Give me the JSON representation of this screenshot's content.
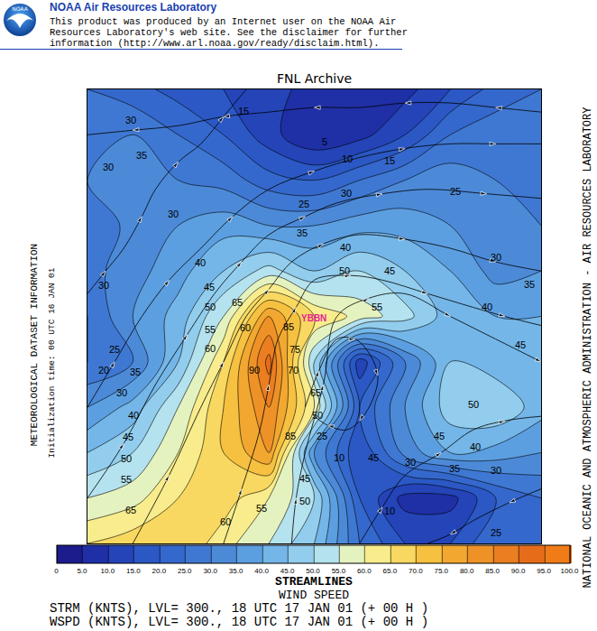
{
  "chart_data": {
    "type": "contour",
    "title": "FNL Archive",
    "header": {
      "logo_text": "NOAA",
      "heading": "NOAA Air Resources Laboratory",
      "lines": [
        "This product was produced by an Internet user on the NOAA Air",
        "Resources Laboratory's web site.  See the disclaimer for further",
        "information (http://www.arl.noaa.gov/ready/disclaim.html)."
      ]
    },
    "left_texts": [
      "METEOROLOGICAL DATASET INFORMATION",
      "Initialization time: 00 UTC 16 JAN 01"
    ],
    "right_text": "NATIONAL OCEANIC AND ATMOSPHERIC ADMINISTRATION - AIR RESOURCES LABORATORY",
    "footer": {
      "titles": [
        "STREAMLINES",
        "WIND SPEED"
      ],
      "lines": [
        "STRM (KNTS),  LVL= 300., 18 UTC 17 JAN 01 (+ 00 H )",
        "WSPD (KNTS),  LVL= 300., 18 UTC 17 JAN 01 (+ 00 H )"
      ]
    },
    "xlim": [
      0,
      100
    ],
    "ylim": [
      0,
      100
    ],
    "tick_labels": false,
    "grid": false,
    "x": [
      0,
      10,
      20,
      30,
      40,
      50,
      60,
      70,
      80,
      90,
      100
    ],
    "y": [
      0,
      10,
      20,
      30,
      40,
      50,
      60,
      70,
      80,
      90,
      100
    ],
    "z": [
      [
        65,
        68,
        70,
        62,
        55,
        45,
        25,
        15,
        15,
        25,
        25
      ],
      [
        55,
        58,
        65,
        68,
        60,
        50,
        20,
        8,
        8,
        20,
        25
      ],
      [
        45,
        50,
        60,
        70,
        80,
        35,
        15,
        32,
        40,
        38,
        35
      ],
      [
        35,
        42,
        55,
        70,
        85,
        60,
        20,
        35,
        48,
        50,
        42
      ],
      [
        25,
        30,
        45,
        65,
        92,
        50,
        12,
        30,
        45,
        42,
        45
      ],
      [
        25,
        35,
        42,
        55,
        80,
        65,
        58,
        52,
        42,
        40,
        40
      ],
      [
        28,
        33,
        38,
        45,
        52,
        45,
        50,
        45,
        40,
        33,
        35
      ],
      [
        25,
        32,
        35,
        38,
        35,
        35,
        38,
        38,
        35,
        32,
        30
      ],
      [
        30,
        33,
        30,
        28,
        22,
        20,
        25,
        30,
        33,
        30,
        30
      ],
      [
        30,
        30,
        25,
        20,
        12,
        5,
        8,
        15,
        25,
        28,
        28
      ],
      [
        25,
        22,
        18,
        15,
        12,
        8,
        5,
        8,
        15,
        22,
        25
      ]
    ],
    "colorbar": {
      "range": [
        0,
        100
      ],
      "ticks": [
        0,
        {
          "value": 5,
          "label": "5.0"
        },
        {
          "value": 10,
          "label": "10.0"
        },
        {
          "value": 15,
          "label": "15.0"
        },
        {
          "value": 20,
          "label": "20.0"
        },
        {
          "value": 25,
          "label": "25.0"
        },
        {
          "value": 30,
          "label": "30.0"
        },
        {
          "value": 35,
          "label": "35.0"
        },
        {
          "value": 40,
          "label": "40.0"
        },
        {
          "value": 45,
          "label": "45.0"
        },
        {
          "value": 50,
          "label": "50.0"
        },
        {
          "value": 55,
          "label": "55.0"
        },
        {
          "value": 60,
          "label": "60.0"
        },
        {
          "value": 65,
          "label": "65.0"
        },
        {
          "value": 70,
          "label": "70.0"
        },
        {
          "value": 75,
          "label": "75.0"
        },
        {
          "value": 80,
          "label": "80.0"
        },
        {
          "value": 85,
          "label": "85.0"
        },
        {
          "value": 90,
          "label": "90.0"
        },
        {
          "value": 95,
          "label": "95.0"
        },
        {
          "value": 100,
          "label": "100.0"
        }
      ],
      "colors": [
        "#1c1c8c",
        "#1f2fa6",
        "#2444b8",
        "#2b58c4",
        "#3568cc",
        "#3f78d2",
        "#4c8ad8",
        "#5c9fe0",
        "#74b6e8",
        "#92cded",
        "#b4e2ee",
        "#e4f2c0",
        "#f8ec8c",
        "#f8d860",
        "#f6c040",
        "#f2a830",
        "#ee9228",
        "#ea7e20",
        "#e66c1a",
        "#f07c18"
      ]
    },
    "contour_labels": [
      [
        34.4,
        95.2,
        15
      ],
      [
        9.5,
        93.2,
        30
      ],
      [
        52.3,
        88.5,
        5
      ],
      [
        11.9,
        85.5,
        35
      ],
      [
        57.3,
        84.7,
        10
      ],
      [
        66.6,
        84.3,
        15
      ],
      [
        4.6,
        82.9,
        30
      ],
      [
        18.9,
        72.6,
        30
      ],
      [
        47.7,
        74.8,
        25
      ],
      [
        57.1,
        77.1,
        30
      ],
      [
        81.1,
        77.5,
        25
      ],
      [
        47.3,
        68.4,
        35
      ],
      [
        56.9,
        65.2,
        40
      ],
      [
        24.9,
        61.8,
        40
      ],
      [
        56.7,
        60.0,
        50
      ],
      [
        66.6,
        60.0,
        45
      ],
      [
        90.1,
        63.0,
        30
      ],
      [
        26.8,
        56.5,
        45
      ],
      [
        3.6,
        56.9,
        30
      ],
      [
        97.5,
        57.1,
        35
      ],
      [
        27.0,
        52.1,
        50
      ],
      [
        33.0,
        53.1,
        65
      ],
      [
        63.8,
        52.1,
        55
      ],
      [
        88.1,
        52.1,
        40
      ],
      [
        27.0,
        47.1,
        55
      ],
      [
        34.8,
        47.5,
        60
      ],
      [
        44.3,
        47.7,
        85
      ],
      [
        27.0,
        42.9,
        60
      ],
      [
        45.7,
        42.7,
        75
      ],
      [
        6.0,
        42.7,
        25
      ],
      [
        95.4,
        43.7,
        45
      ],
      [
        36.8,
        38.2,
        90
      ],
      [
        45.3,
        38.2,
        70
      ],
      [
        3.6,
        38.2,
        20
      ],
      [
        10.5,
        37.8,
        35
      ],
      [
        50.3,
        33.2,
        65
      ],
      [
        7.6,
        33.2,
        30
      ],
      [
        85.1,
        30.6,
        50
      ],
      [
        10.1,
        28.2,
        40
      ],
      [
        50.7,
        28.2,
        50
      ],
      [
        44.7,
        23.7,
        85
      ],
      [
        51.7,
        23.7,
        25
      ],
      [
        8.9,
        23.5,
        45
      ],
      [
        77.5,
        23.7,
        45
      ],
      [
        85.5,
        21.3,
        40
      ],
      [
        55.5,
        18.9,
        10
      ],
      [
        47.9,
        14.3,
        45
      ],
      [
        47.9,
        9.3,
        50
      ],
      [
        63.0,
        18.9,
        45
      ],
      [
        71.2,
        17.9,
        30
      ],
      [
        80.9,
        16.5,
        35
      ],
      [
        90.1,
        16.1,
        30
      ],
      [
        8.5,
        18.7,
        50
      ],
      [
        8.5,
        14.1,
        55
      ],
      [
        9.5,
        7.4,
        65
      ],
      [
        66.6,
        7.2,
        10
      ],
      [
        38.4,
        7.8,
        55
      ],
      [
        30.4,
        4.8,
        60
      ],
      [
        90.1,
        2.4,
        25
      ]
    ],
    "streamlines": [
      [
        [
          10,
          0
        ],
        [
          18,
          15
        ],
        [
          25,
          30
        ],
        [
          30,
          40
        ],
        [
          35,
          50
        ],
        [
          40,
          56
        ],
        [
          45,
          62
        ],
        [
          52,
          66
        ],
        [
          60,
          68
        ],
        [
          70,
          67
        ],
        [
          80,
          65
        ],
        [
          90,
          62
        ],
        [
          100,
          60
        ]
      ],
      [
        [
          0,
          10
        ],
        [
          8,
          22
        ],
        [
          15,
          35
        ],
        [
          22,
          46
        ],
        [
          28,
          55
        ],
        [
          34,
          62
        ],
        [
          40,
          68
        ],
        [
          48,
          72
        ],
        [
          55,
          75
        ],
        [
          65,
          77
        ],
        [
          75,
          78
        ],
        [
          88,
          77
        ],
        [
          100,
          76
        ]
      ],
      [
        [
          30,
          0
        ],
        [
          34,
          12
        ],
        [
          38,
          25
        ],
        [
          40,
          35
        ],
        [
          42,
          45
        ],
        [
          46,
          52
        ],
        [
          50,
          58
        ],
        [
          58,
          59
        ],
        [
          65,
          58
        ],
        [
          75,
          55
        ],
        [
          85,
          52
        ],
        [
          92,
          50
        ],
        [
          100,
          48
        ]
      ],
      [
        [
          0,
          30
        ],
        [
          6,
          40
        ],
        [
          12,
          50
        ],
        [
          18,
          58
        ],
        [
          25,
          65
        ],
        [
          32,
          72
        ],
        [
          40,
          78
        ],
        [
          50,
          82
        ],
        [
          60,
          85
        ],
        [
          70,
          87
        ],
        [
          80,
          88
        ],
        [
          90,
          88
        ],
        [
          100,
          88
        ]
      ],
      [
        [
          100,
          95
        ],
        [
          90,
          96
        ],
        [
          80,
          97
        ],
        [
          70,
          97
        ],
        [
          60,
          96
        ],
        [
          50,
          96
        ],
        [
          40,
          95
        ],
        [
          30,
          94
        ],
        [
          20,
          92
        ],
        [
          10,
          91
        ],
        [
          0,
          90
        ]
      ],
      [
        [
          0,
          55
        ],
        [
          4,
          60
        ],
        [
          8,
          65
        ],
        [
          12,
          72
        ],
        [
          15,
          78
        ],
        [
          20,
          84
        ],
        [
          25,
          88
        ],
        [
          30,
          94
        ],
        [
          35,
          100
        ]
      ],
      [
        [
          48,
          30
        ],
        [
          51,
          38
        ],
        [
          55,
          45
        ],
        [
          59,
          45
        ],
        [
          62,
          42
        ],
        [
          64,
          37
        ],
        [
          63,
          32
        ],
        [
          60,
          27
        ],
        [
          57,
          25
        ],
        [
          53,
          26
        ],
        [
          50,
          28
        ]
      ],
      [
        [
          45,
          0
        ],
        [
          46,
          10
        ],
        [
          48,
          20
        ],
        [
          52,
          35
        ],
        [
          55,
          50
        ],
        [
          62,
          54
        ],
        [
          70,
          55
        ],
        [
          80,
          50
        ],
        [
          90,
          45
        ],
        [
          100,
          40
        ]
      ],
      [
        [
          60,
          0
        ],
        [
          65,
          8
        ],
        [
          70,
          15
        ],
        [
          78,
          20
        ],
        [
          85,
          25
        ],
        [
          92,
          27
        ],
        [
          100,
          28
        ]
      ],
      [
        [
          100,
          12
        ],
        [
          93,
          9
        ],
        [
          85,
          5
        ],
        [
          80,
          2
        ],
        [
          75,
          0
        ]
      ]
    ],
    "station": {
      "name": "YBBN",
      "x": 49.9,
      "y": 49.7,
      "color": "#e8209a"
    }
  }
}
